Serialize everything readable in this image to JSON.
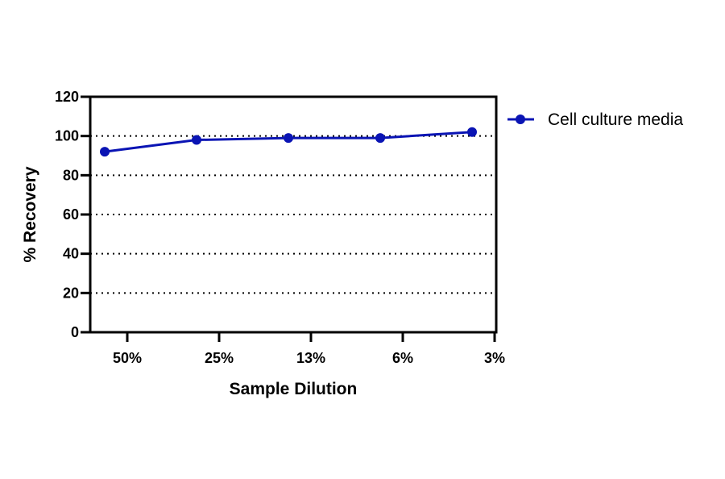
{
  "chart_data": {
    "type": "line",
    "categories": [
      "50%",
      "25%",
      "13%",
      "6%",
      "3%"
    ],
    "series": [
      {
        "name": "Cell culture media",
        "values": [
          92,
          98,
          99,
          99,
          102
        ],
        "color": "#0a14b4"
      }
    ],
    "xlabel": "Sample Dilution",
    "ylabel": "% Recovery",
    "ylim": [
      0,
      120
    ],
    "yticks": [
      0,
      20,
      40,
      60,
      80,
      100,
      120
    ],
    "grid": "horizontal dotted",
    "legend_position": "right"
  }
}
